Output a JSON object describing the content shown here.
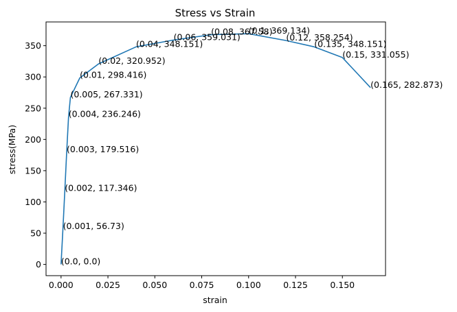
{
  "chart_data": {
    "type": "line",
    "title": "Stress vs Strain",
    "xlabel": "strain",
    "ylabel": "stress(MPa)",
    "xlim": [
      -0.008,
      0.173
    ],
    "ylim": [
      -18,
      388
    ],
    "grid": false,
    "line_color": "#1f77b4",
    "x_ticks": [
      "0.000",
      "0.025",
      "0.050",
      "0.075",
      "0.100",
      "0.125",
      "0.150"
    ],
    "y_ticks": [
      "0",
      "50",
      "100",
      "150",
      "200",
      "250",
      "300",
      "350"
    ],
    "series": [
      {
        "x": [
          0.0,
          0.001,
          0.002,
          0.003,
          0.004,
          0.005,
          0.01,
          0.02,
          0.04,
          0.06,
          0.08,
          0.1,
          0.12,
          0.135,
          0.15,
          0.165
        ],
        "y": [
          0.0,
          56.73,
          117.346,
          179.516,
          236.246,
          267.331,
          298.416,
          320.952,
          348.151,
          359.031,
          367.58,
          369.134,
          358.254,
          348.151,
          331.055,
          282.873
        ]
      }
    ],
    "annotations": [
      "(0.0, 0.0)",
      "(0.001, 56.73)",
      "(0.002, 117.346)",
      "(0.003, 179.516)",
      "(0.004, 236.246)",
      "(0.005, 267.331)",
      "(0.01, 298.416)",
      "(0.02, 320.952)",
      "(0.04, 348.151)",
      "(0.06, 359.031)",
      "(0.08, 367.58)",
      "(0.1, 369.134)",
      "(0.12, 358.254)",
      "(0.135, 348.151)",
      "(0.15, 331.055)",
      "(0.165, 282.873)"
    ]
  }
}
